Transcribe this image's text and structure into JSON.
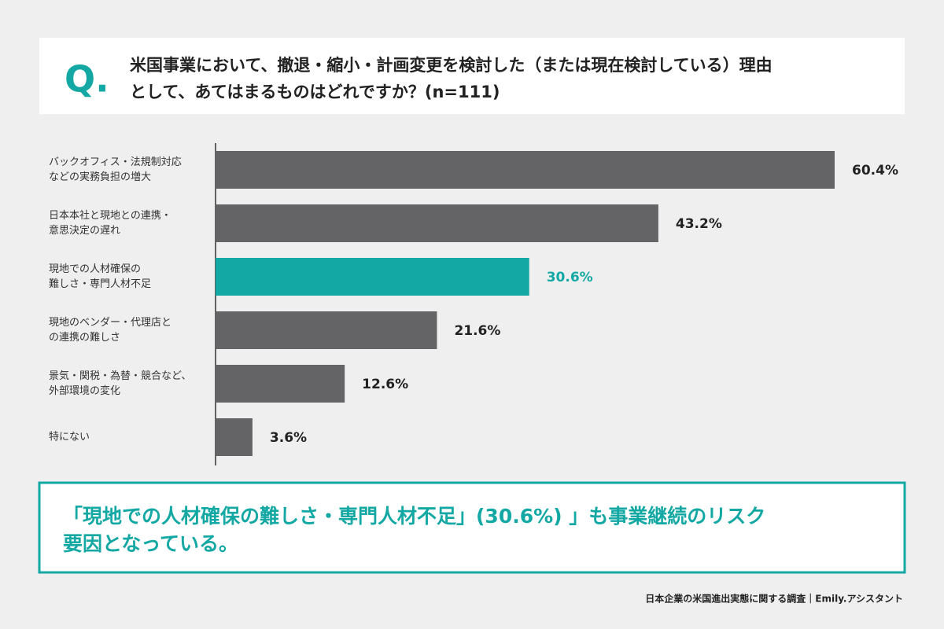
{
  "chart_data": {
    "type": "bar",
    "orientation": "horizontal",
    "title_mark": "Q.",
    "title": [
      "米国事業において、撤退・縮小・計画変更を検討した（または現在検討している）理由",
      "として、あてはまるものはどれですか？(n=111)"
    ],
    "categories": [
      [
        "バックオフィス・法規制対応",
        "などの実務負担の増大"
      ],
      [
        "日本本社と現地との連携・",
        "意思決定の遅れ"
      ],
      [
        "現地での人材確保の",
        "難しさ・専門人材不足"
      ],
      [
        "現地のベンダー・代理店と",
        "の連携の難しさ"
      ],
      [
        "景気・関税・為替・競合など、",
        "外部環境の変化"
      ],
      [
        "特にない"
      ]
    ],
    "values": [
      60.4,
      43.2,
      30.6,
      21.6,
      12.6,
      3.6
    ],
    "value_labels": [
      "60.4%",
      "43.2%",
      "30.6%",
      "21.6%",
      "12.6%",
      "3.6%"
    ],
    "colors": [
      "#646366",
      "#646366",
      "#13a8a3",
      "#646366",
      "#646366",
      "#646366"
    ],
    "annotation": [
      "「現地での人材確保の難しさ・専門人材不足」(30.6%) 」も事業継続のリスク",
      "要因となっている。"
    ],
    "source": "日本企業の米国進出実態に関する調査｜Emily.アシスタント"
  }
}
